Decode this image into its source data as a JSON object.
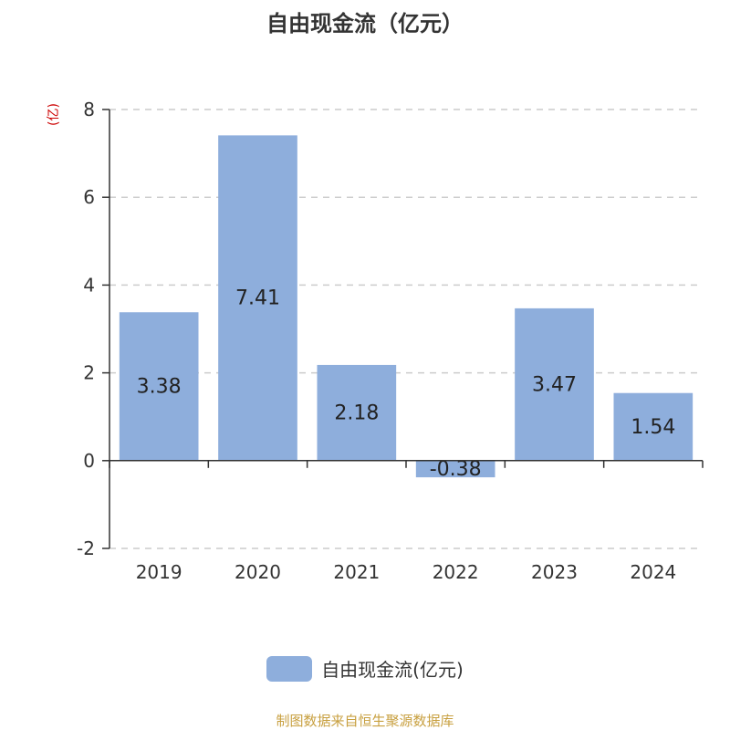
{
  "title": "自由现金流（亿元）",
  "unit_label": "(亿)",
  "legend": {
    "label": "自由现金流(亿元)",
    "color": "#8eaedc"
  },
  "source": "制图数据来自恒生聚源数据库",
  "colors": {
    "bar": "#8eaedc",
    "axis": "#333333",
    "grid": "#cccccc",
    "text": "#333333"
  },
  "chart_data": {
    "type": "bar",
    "categories": [
      "2019",
      "2020",
      "2021",
      "2022",
      "2023",
      "2024"
    ],
    "values": [
      3.38,
      7.41,
      2.18,
      -0.38,
      3.47,
      1.54
    ],
    "value_labels": [
      "3.38",
      "7.41",
      "2.18",
      "-0.38",
      "3.47",
      "1.54"
    ],
    "title": "自由现金流（亿元）",
    "ylabel": "(亿)",
    "ylim": [
      -2,
      8
    ],
    "yticks": [
      -2,
      0,
      2,
      4,
      6,
      8
    ],
    "grid": true,
    "legend_position": "bottom",
    "series": [
      {
        "name": "自由现金流(亿元)",
        "values": [
          3.38,
          7.41,
          2.18,
          -0.38,
          3.47,
          1.54
        ]
      }
    ]
  }
}
